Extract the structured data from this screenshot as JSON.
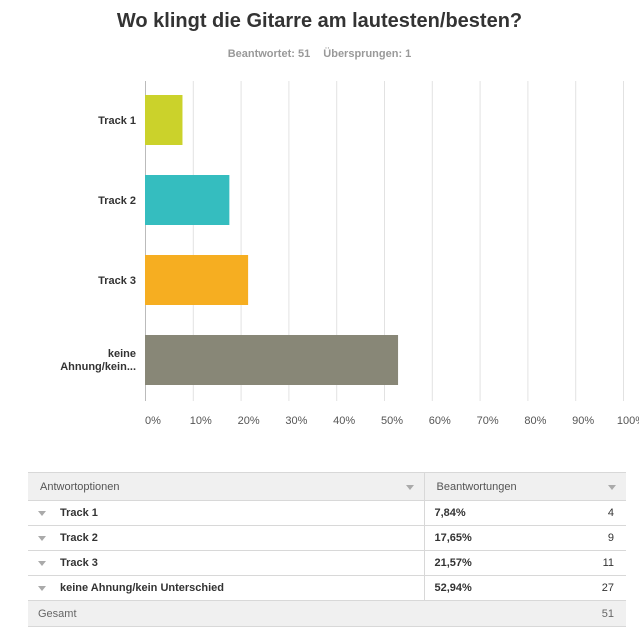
{
  "question": "Wo klingt die Gitarre am lautesten/besten?",
  "answered_label": "Beantwortet: 51",
  "skipped_label": "Übersprungen: 1",
  "chart_data": {
    "type": "bar",
    "orientation": "horizontal",
    "title": "Wo klingt die Gitarre am lautesten/besten?",
    "categories": [
      "Track 1",
      "Track 2",
      "Track 3",
      "keine Ahnung/kein..."
    ],
    "values": [
      7.84,
      17.65,
      21.57,
      52.94
    ],
    "colors": [
      "#cbd22b",
      "#35bdbf",
      "#f6ae21",
      "#888777"
    ],
    "xlim": [
      0,
      100
    ],
    "x_ticks": [
      "0%",
      "10%",
      "20%",
      "30%",
      "40%",
      "50%",
      "60%",
      "70%",
      "80%",
      "90%",
      "100%"
    ],
    "grid": true
  },
  "table": {
    "headers": [
      "Antwortoptionen",
      "Beantwortungen"
    ],
    "rows": [
      {
        "option": "Track 1",
        "percent": "7,84%",
        "count": "4"
      },
      {
        "option": "Track 2",
        "percent": "17,65%",
        "count": "9"
      },
      {
        "option": "Track 3",
        "percent": "21,57%",
        "count": "11"
      },
      {
        "option": "keine Ahnung/kein Unterschied",
        "percent": "52,94%",
        "count": "27"
      }
    ],
    "total_label": "Gesamt",
    "total_value": "51"
  }
}
